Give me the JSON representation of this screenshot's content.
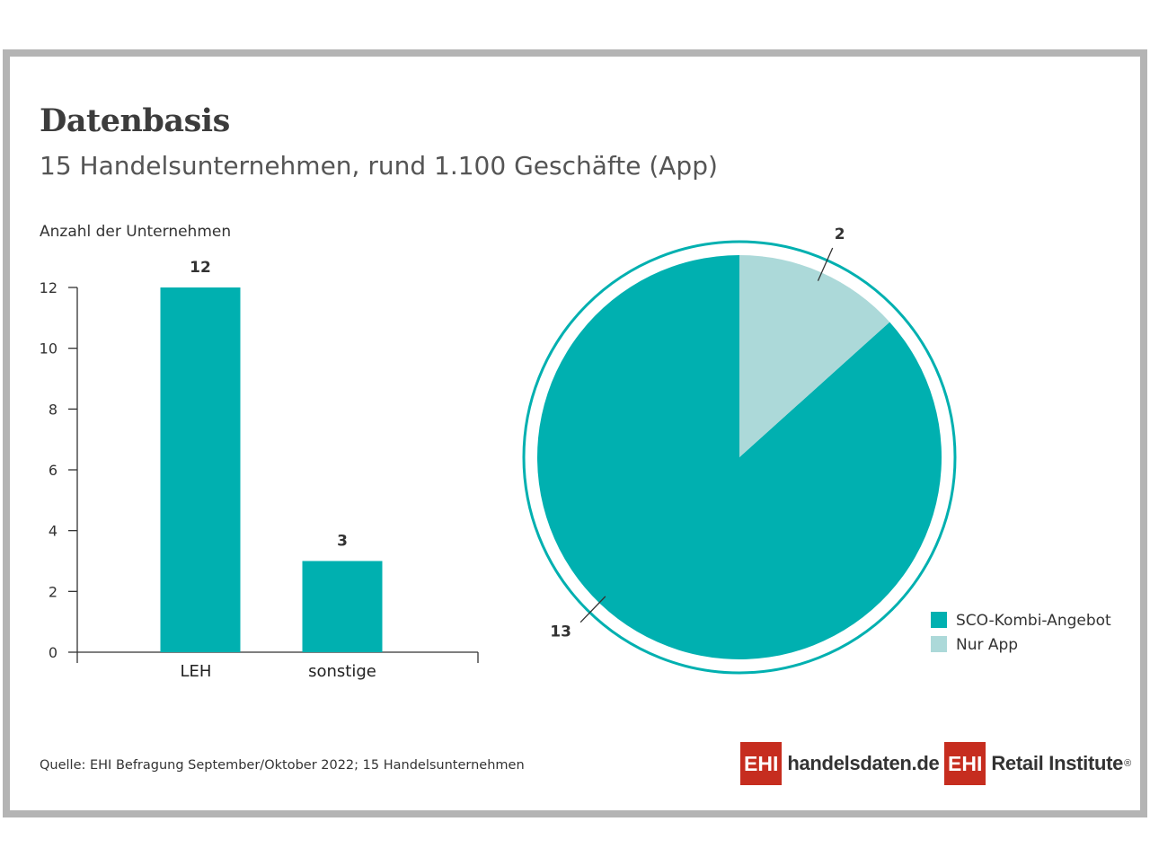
{
  "title": "Datenbasis",
  "subtitle": "15 Handelsunternehmen, rund 1.100 Geschäfte (App)",
  "source": "Quelle: EHI Befragung September/Oktober 2022; 15 Handelsunternehmen",
  "logos": {
    "handelsdaten": {
      "box": "EHI",
      "text": "handelsdaten.de"
    },
    "retail": {
      "box": "EHI",
      "text": "Retail Institute",
      "mark": "®"
    }
  },
  "colors": {
    "teal": "#00b0b0",
    "light_teal": "#acd9d9",
    "brand_red": "#c62d1f"
  },
  "chart_data": [
    {
      "type": "bar",
      "ylabel": "Anzahl der Unternehmen",
      "categories": [
        "LEH",
        "sonstige"
      ],
      "values": [
        12,
        3
      ],
      "data_labels": [
        "12",
        "3"
      ],
      "ylim": [
        0,
        12
      ],
      "yticks": [
        0,
        2,
        4,
        6,
        8,
        10,
        12
      ],
      "ytick_labels": [
        "0",
        "2",
        "4",
        "6",
        "8",
        "10",
        "12"
      ],
      "grid": false
    },
    {
      "type": "pie",
      "slices": [
        {
          "label": "SCO-Kombi-Angebot",
          "value": 13,
          "data_label": "13",
          "color": "#00b0b0"
        },
        {
          "label": "Nur App",
          "value": 2,
          "data_label": "2",
          "color": "#acd9d9"
        }
      ],
      "legend_position": "bottom-right"
    }
  ]
}
